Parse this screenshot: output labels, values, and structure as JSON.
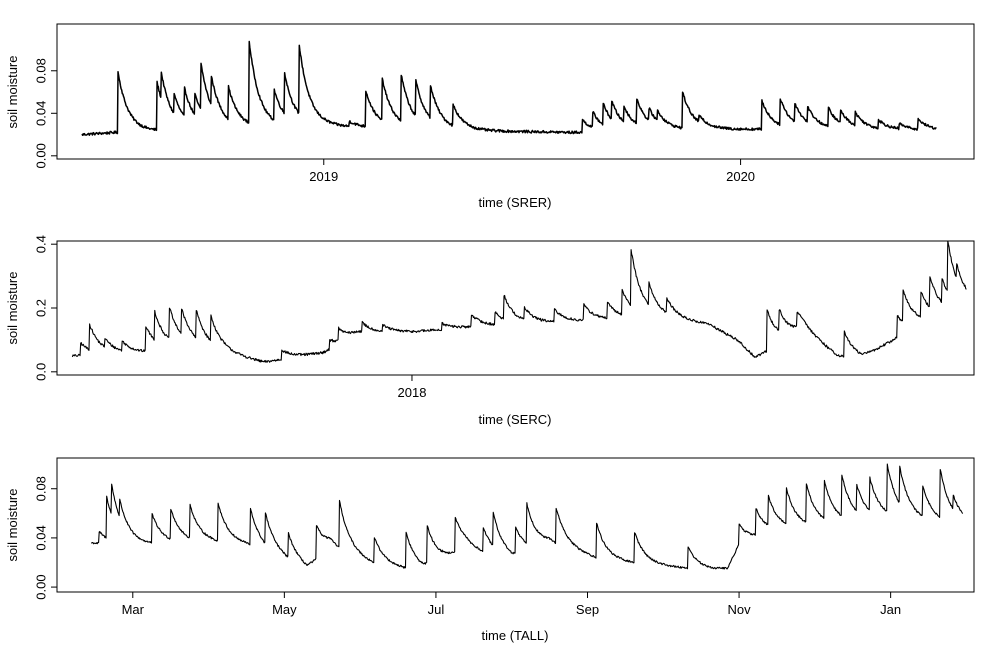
{
  "chart_data": [
    {
      "type": "line",
      "id": "srer",
      "xlabel": "time (SRER)",
      "ylabel": "soil moisture",
      "xlim": [
        2018.36,
        2020.56
      ],
      "ylim": [
        -0.003,
        0.124
      ],
      "xticks": [
        {
          "value": 2019,
          "label": "2019"
        },
        {
          "value": 2020,
          "label": "2020"
        }
      ],
      "yticks": [
        {
          "value": 0.0,
          "label": "0.00"
        },
        {
          "value": 0.04,
          "label": "0.04"
        },
        {
          "value": 0.08,
          "label": "0.08"
        }
      ],
      "baseline": 0.02,
      "x_start": 2018.42,
      "x_end": 2020.47,
      "noise": 0.0012,
      "base_drift": [
        [
          2018.42,
          0.02
        ],
        [
          2018.5,
          0.022
        ],
        [
          2018.75,
          0.025
        ],
        [
          2019.0,
          0.028
        ],
        [
          2019.3,
          0.024
        ],
        [
          2019.6,
          0.022
        ],
        [
          2019.9,
          0.025
        ],
        [
          2020.2,
          0.025
        ],
        [
          2020.47,
          0.024
        ]
      ],
      "events": [
        [
          2018.505,
          0.06
        ],
        [
          2018.6,
          0.045
        ],
        [
          2018.61,
          0.025
        ],
        [
          2018.64,
          0.02
        ],
        [
          2018.665,
          0.028
        ],
        [
          2018.69,
          0.02
        ],
        [
          2018.705,
          0.045
        ],
        [
          2018.73,
          0.028
        ],
        [
          2018.77,
          0.032
        ],
        [
          2018.82,
          0.08
        ],
        [
          2018.88,
          0.03
        ],
        [
          2018.905,
          0.04
        ],
        [
          2018.94,
          0.068
        ],
        [
          2019.06,
          0.005
        ],
        [
          2019.1,
          0.035
        ],
        [
          2019.14,
          0.04
        ],
        [
          2019.185,
          0.045
        ],
        [
          2019.22,
          0.035
        ],
        [
          2019.255,
          0.032
        ],
        [
          2019.31,
          0.02
        ],
        [
          2019.62,
          0.012
        ],
        [
          2019.645,
          0.015
        ],
        [
          2019.67,
          0.02
        ],
        [
          2019.69,
          0.018
        ],
        [
          2019.72,
          0.015
        ],
        [
          2019.75,
          0.025
        ],
        [
          2019.78,
          0.012
        ],
        [
          2019.8,
          0.01
        ],
        [
          2019.86,
          0.035
        ],
        [
          2019.9,
          0.006
        ],
        [
          2020.05,
          0.028
        ],
        [
          2020.095,
          0.025
        ],
        [
          2020.13,
          0.018
        ],
        [
          2020.16,
          0.015
        ],
        [
          2020.21,
          0.018
        ],
        [
          2020.24,
          0.012
        ],
        [
          2020.275,
          0.012
        ],
        [
          2020.33,
          0.008
        ],
        [
          2020.38,
          0.005
        ],
        [
          2020.425,
          0.01
        ]
      ]
    },
    {
      "type": "line",
      "id": "serc",
      "xlabel": "time (SERC)",
      "ylabel": "soil moisture",
      "xlim": [
        2017.4,
        2018.95
      ],
      "ylim": [
        -0.01,
        0.41
      ],
      "xticks": [
        {
          "value": 2018,
          "label": "2018"
        }
      ],
      "yticks": [
        {
          "value": 0.0,
          "label": "0.0"
        },
        {
          "value": 0.2,
          "label": "0.2"
        },
        {
          "value": 0.4,
          "label": "0.4"
        }
      ],
      "baseline": 0.05,
      "x_start": 2017.426,
      "x_end": 2018.937,
      "noise": 0.004,
      "base_drift": [
        [
          2017.426,
          0.05
        ],
        [
          2017.55,
          0.06
        ],
        [
          2017.62,
          0.08
        ],
        [
          2017.68,
          0.06
        ],
        [
          2017.75,
          0.03
        ],
        [
          2017.85,
          0.06
        ],
        [
          2017.91,
          0.12
        ],
        [
          2018.0,
          0.125
        ],
        [
          2018.1,
          0.14
        ],
        [
          2018.3,
          0.16
        ],
        [
          2018.4,
          0.17
        ],
        [
          2018.5,
          0.15
        ],
        [
          2018.55,
          0.1
        ],
        [
          2018.58,
          0.045
        ],
        [
          2018.66,
          0.13
        ],
        [
          2018.72,
          0.05
        ],
        [
          2018.76,
          0.04
        ],
        [
          2018.85,
          0.14
        ],
        [
          2018.937,
          0.2
        ]
      ],
      "events": [
        [
          2017.44,
          0.04
        ],
        [
          2017.455,
          0.08
        ],
        [
          2017.48,
          0.03
        ],
        [
          2017.51,
          0.03
        ],
        [
          2017.55,
          0.08
        ],
        [
          2017.565,
          0.09
        ],
        [
          2017.59,
          0.1
        ],
        [
          2017.61,
          0.08
        ],
        [
          2017.635,
          0.09
        ],
        [
          2017.66,
          0.08
        ],
        [
          2017.78,
          0.03
        ],
        [
          2017.86,
          0.03
        ],
        [
          2017.875,
          0.04
        ],
        [
          2017.915,
          0.03
        ],
        [
          2017.95,
          0.02
        ],
        [
          2018.05,
          0.02
        ],
        [
          2018.1,
          0.04
        ],
        [
          2018.14,
          0.04
        ],
        [
          2018.155,
          0.08
        ],
        [
          2018.19,
          0.04
        ],
        [
          2018.24,
          0.04
        ],
        [
          2018.29,
          0.05
        ],
        [
          2018.33,
          0.05
        ],
        [
          2018.355,
          0.08
        ],
        [
          2018.37,
          0.18
        ],
        [
          2018.4,
          0.07
        ],
        [
          2018.43,
          0.05
        ],
        [
          2018.6,
          0.13
        ],
        [
          2018.62,
          0.07
        ],
        [
          2018.65,
          0.05
        ],
        [
          2018.73,
          0.08
        ],
        [
          2018.82,
          0.07
        ],
        [
          2018.83,
          0.1
        ],
        [
          2018.86,
          0.08
        ],
        [
          2018.875,
          0.1
        ],
        [
          2018.895,
          0.08
        ],
        [
          2018.905,
          0.17
        ],
        [
          2018.92,
          0.05
        ]
      ]
    },
    {
      "type": "line",
      "id": "tall",
      "xlabel": "time (TALL)",
      "ylabel": "soil moisture",
      "xlim": [
        0,
        12.1
      ],
      "ylim": [
        -0.004,
        0.105
      ],
      "xticks": [
        {
          "value": 1.0,
          "label": "Mar"
        },
        {
          "value": 3.0,
          "label": "May"
        },
        {
          "value": 5.0,
          "label": "Jul"
        },
        {
          "value": 7.0,
          "label": "Sep"
        },
        {
          "value": 9.0,
          "label": "Nov"
        },
        {
          "value": 11.0,
          "label": "Jan"
        }
      ],
      "yticks": [
        {
          "value": 0.0,
          "label": "0.00"
        },
        {
          "value": 0.04,
          "label": "0.04"
        },
        {
          "value": 0.08,
          "label": "0.08"
        }
      ],
      "baseline": 0.035,
      "x_start": 0.45,
      "x_end": 11.95,
      "noise": 0.0008,
      "base_drift": [
        [
          0.45,
          0.036
        ],
        [
          1.0,
          0.034
        ],
        [
          2.0,
          0.036
        ],
        [
          2.5,
          0.034
        ],
        [
          3.0,
          0.022
        ],
        [
          3.3,
          0.014
        ],
        [
          3.6,
          0.032
        ],
        [
          4.2,
          0.018
        ],
        [
          4.8,
          0.013
        ],
        [
          5.4,
          0.03
        ],
        [
          6.0,
          0.022
        ],
        [
          6.5,
          0.035
        ],
        [
          7.2,
          0.022
        ],
        [
          7.8,
          0.018
        ],
        [
          8.6,
          0.014
        ],
        [
          8.85,
          0.015
        ],
        [
          9.0,
          0.035
        ],
        [
          9.5,
          0.045
        ],
        [
          10.2,
          0.05
        ],
        [
          11.0,
          0.055
        ],
        [
          11.95,
          0.05
        ]
      ],
      "events": [
        [
          0.55,
          0.01
        ],
        [
          0.65,
          0.035
        ],
        [
          0.72,
          0.025
        ],
        [
          0.82,
          0.015
        ],
        [
          1.25,
          0.024
        ],
        [
          1.5,
          0.025
        ],
        [
          1.75,
          0.028
        ],
        [
          2.12,
          0.032
        ],
        [
          2.55,
          0.03
        ],
        [
          2.75,
          0.025
        ],
        [
          3.05,
          0.02
        ],
        [
          3.42,
          0.028
        ],
        [
          3.72,
          0.04
        ],
        [
          4.18,
          0.022
        ],
        [
          4.6,
          0.03
        ],
        [
          4.88,
          0.032
        ],
        [
          5.25,
          0.03
        ],
        [
          5.62,
          0.02
        ],
        [
          5.75,
          0.028
        ],
        [
          6.05,
          0.022
        ],
        [
          6.2,
          0.032
        ],
        [
          6.58,
          0.03
        ],
        [
          7.12,
          0.028
        ],
        [
          7.62,
          0.025
        ],
        [
          8.32,
          0.018
        ],
        [
          9.0,
          0.016
        ],
        [
          9.22,
          0.022
        ],
        [
          9.38,
          0.025
        ],
        [
          9.62,
          0.03
        ],
        [
          9.88,
          0.033
        ],
        [
          10.12,
          0.032
        ],
        [
          10.35,
          0.035
        ],
        [
          10.55,
          0.022
        ],
        [
          10.72,
          0.028
        ],
        [
          10.95,
          0.04
        ],
        [
          11.12,
          0.03
        ],
        [
          11.42,
          0.025
        ],
        [
          11.65,
          0.04
        ],
        [
          11.82,
          0.012
        ]
      ]
    }
  ]
}
